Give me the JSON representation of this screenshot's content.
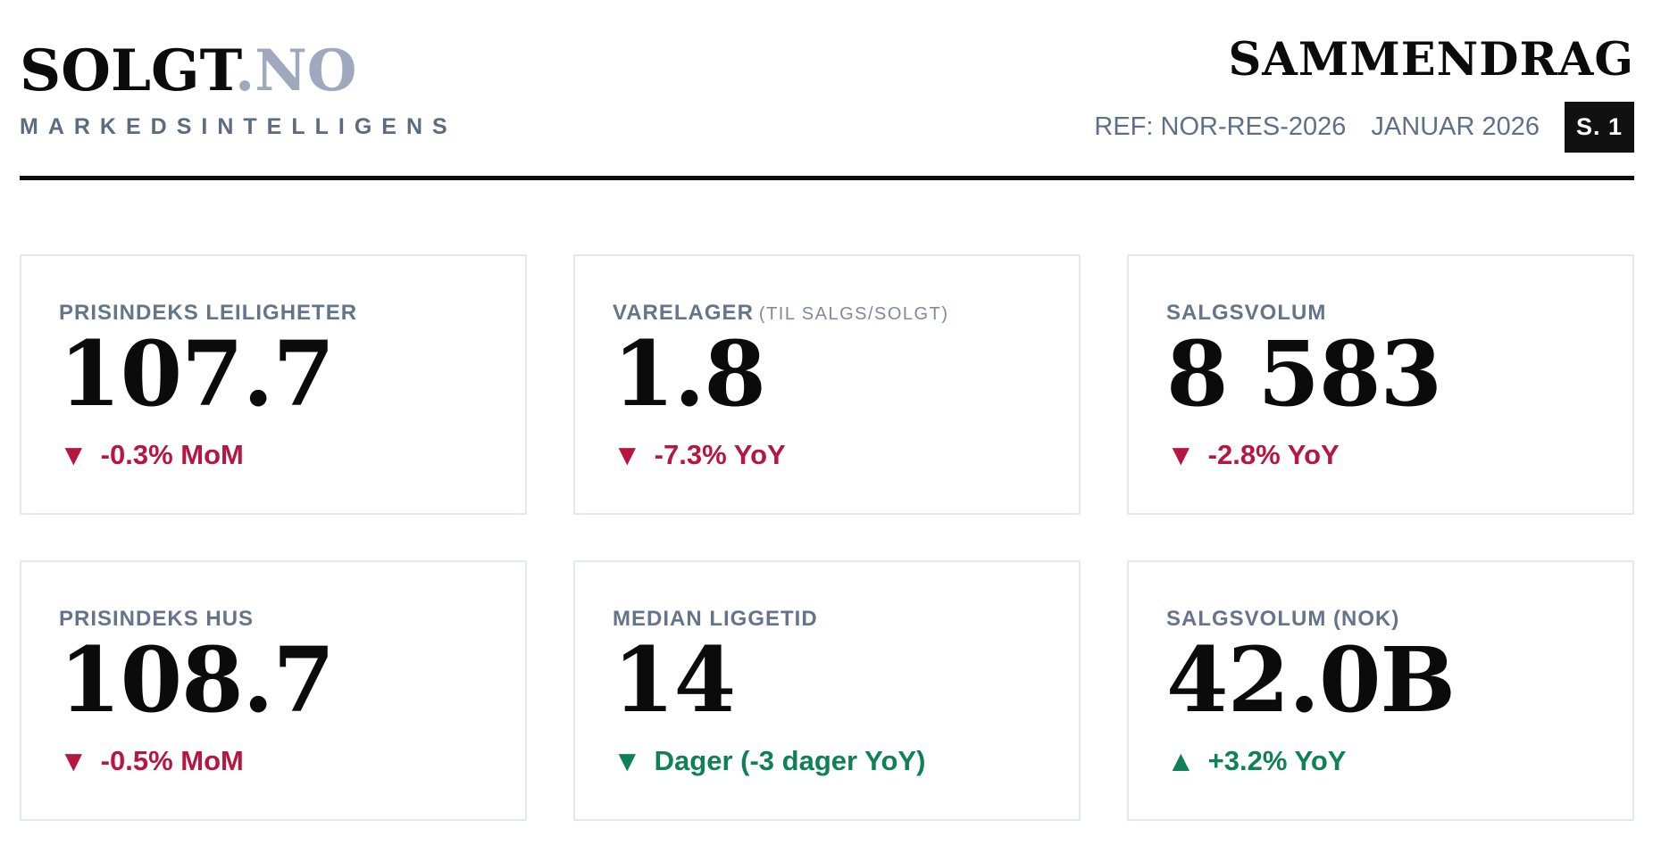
{
  "brand": {
    "name_primary": "SOLGT",
    "name_secondary": ".NO",
    "tagline": "MARKEDSINTELLIGENS"
  },
  "header": {
    "title": "SAMMENDRAG",
    "ref": "REF: NOR-RES-2026",
    "date": "JANUAR 2026",
    "page_badge": "S. 1"
  },
  "colors": {
    "accent_negative": "#B71641",
    "accent_positive": "#0F8156",
    "label_slate": "#64748B",
    "brand_secondary": "#9EA9BE",
    "tagline_gray": "#5B6B80",
    "meta_text": "#5E7089",
    "card_border": "#E2E8F0",
    "badge_bg": "#111111",
    "badge_text": "#FFFFFF",
    "ink": "#0B0B0C"
  },
  "cards": [
    {
      "label": "PRISINDEKS LEILIGHETER",
      "sublabel": "",
      "value": "107.7",
      "arrow": "▼",
      "delta_text": "-0.3% MoM",
      "tone": "negative"
    },
    {
      "label": "VARELAGER",
      "sublabel": "(TIL SALGS/SOLGT)",
      "value": "1.8",
      "arrow": "▼",
      "delta_text": "-7.3% YoY",
      "tone": "negative"
    },
    {
      "label": "SALGSVOLUM",
      "sublabel": "",
      "value": "8 583",
      "arrow": "▼",
      "delta_text": "-2.8% YoY",
      "tone": "negative"
    },
    {
      "label": "PRISINDEKS HUS",
      "sublabel": "",
      "value": "108.7",
      "arrow": "▼",
      "delta_text": "-0.5% MoM",
      "tone": "negative"
    },
    {
      "label": "MEDIAN LIGGETID",
      "sublabel": "",
      "value": "14",
      "arrow": "▼",
      "delta_text": "Dager (-3 dager YoY)",
      "tone": "positive"
    },
    {
      "label": "SALGSVOLUM (NOK)",
      "sublabel": "",
      "value": "42.0B",
      "arrow": "▲",
      "delta_text": "+3.2% YoY",
      "tone": "positive"
    }
  ]
}
